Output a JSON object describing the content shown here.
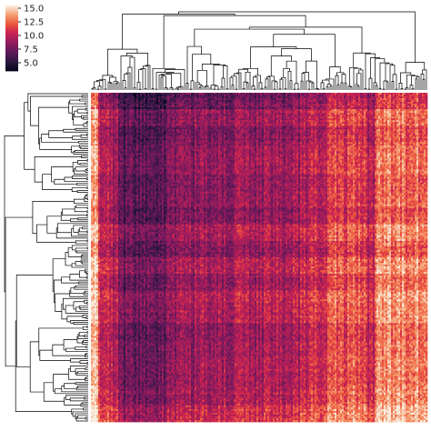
{
  "chart_data": {
    "type": "heatmap",
    "subtype": "clustermap",
    "title": "",
    "xlabel": "",
    "ylabel": "",
    "row_dendrogram": true,
    "col_dendrogram": true,
    "row_labels_shown": false,
    "col_labels_shown": false,
    "colormap": "rocket",
    "colorbar": {
      "position": "top-left",
      "range": [
        3.5,
        15.5
      ],
      "ticks": [
        5.0,
        7.5,
        10.0,
        12.5,
        15.0
      ],
      "tick_labels": [
        "5.0",
        "7.5",
        "10.0",
        "12.5",
        "15.0"
      ]
    },
    "value_range": [
      3.5,
      15.5
    ],
    "approx_rows": 180,
    "approx_cols": 185
  }
}
